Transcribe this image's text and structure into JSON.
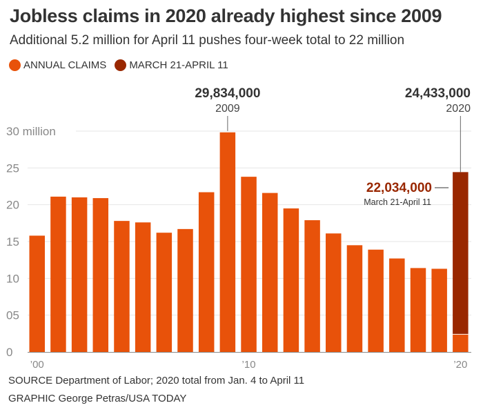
{
  "header": {
    "title": "Jobless claims in 2020 already highest since 2009",
    "subtitle": "Additional 5.2 million for April 11 pushes four-week total to 22 million"
  },
  "legend": [
    {
      "label": "ANNUAL CLAIMS",
      "color": "#E8520A"
    },
    {
      "label": "MARCH 21-APRIL 11",
      "color": "#992700"
    }
  ],
  "footer": {
    "source": "SOURCE Department of Labor; 2020 total from Jan. 4 to April 11",
    "credit": "GRAPHIC George Petras/USA TODAY"
  },
  "chart_data": {
    "type": "bar",
    "stacked": true,
    "title": "Jobless claims in 2020 already highest since 2009",
    "subtitle": "Additional 5.2 million for April 11 pushes four-week total to 22 million",
    "xlabel": "",
    "ylabel": "",
    "units": "million",
    "ylim": [
      0,
      30
    ],
    "grid": true,
    "legend_position": "top-left",
    "categories": [
      "2000",
      "2001",
      "2002",
      "2003",
      "2004",
      "2005",
      "2006",
      "2007",
      "2008",
      "2009",
      "2010",
      "2011",
      "2012",
      "2013",
      "2014",
      "2015",
      "2016",
      "2017",
      "2018",
      "2019",
      "2020"
    ],
    "x_tick_labels": [
      {
        "index": 0,
        "label": "’00"
      },
      {
        "index": 10,
        "label": "’10"
      },
      {
        "index": 20,
        "label": "’20"
      }
    ],
    "y_ticks": [
      {
        "value": 0,
        "label": "0"
      },
      {
        "value": 5,
        "label": "05"
      },
      {
        "value": 10,
        "label": "10"
      },
      {
        "value": 15,
        "label": "15"
      },
      {
        "value": 20,
        "label": "20"
      },
      {
        "value": 25,
        "label": "25"
      },
      {
        "value": 30,
        "label": "30 million"
      }
    ],
    "series": [
      {
        "name": "ANNUAL CLAIMS",
        "color": "#E8520A",
        "values": [
          15.8,
          21.1,
          21.0,
          20.9,
          17.8,
          17.6,
          16.2,
          16.7,
          21.7,
          29.834,
          23.8,
          21.6,
          19.5,
          17.9,
          16.1,
          14.5,
          13.9,
          12.7,
          11.4,
          11.3,
          2.399
        ]
      },
      {
        "name": "MARCH 21-APRIL 11",
        "color": "#992700",
        "values": [
          0,
          0,
          0,
          0,
          0,
          0,
          0,
          0,
          0,
          0,
          0,
          0,
          0,
          0,
          0,
          0,
          0,
          0,
          0,
          0,
          22.034
        ]
      }
    ],
    "annotations": [
      {
        "index": 9,
        "value_label": "29,834,000",
        "sub_label": "2009",
        "value": 29.834
      },
      {
        "index": 20,
        "value_label": "24,433,000",
        "sub_label": "2020",
        "value": 24.433
      },
      {
        "index": 20,
        "value_label": "22,034,000",
        "sub_label": "March 21-April 11",
        "value": 22.034,
        "style": "highlight"
      }
    ]
  }
}
